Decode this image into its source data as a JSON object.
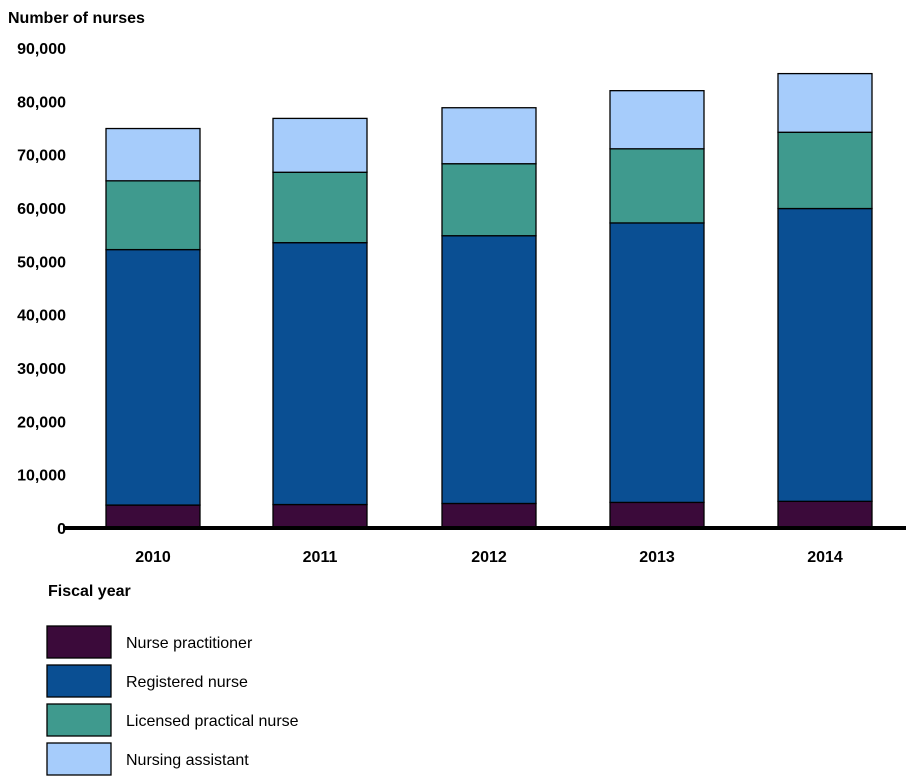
{
  "chart_data": {
    "type": "bar",
    "stacked": true,
    "title": "",
    "ylabel": "Number of nurses",
    "xlabel": "Fiscal year",
    "ylim": [
      0,
      90000
    ],
    "y_ticks": [
      0,
      10000,
      20000,
      30000,
      40000,
      50000,
      60000,
      70000,
      80000,
      90000
    ],
    "y_tick_labels": [
      "0",
      "10,000",
      "20,000",
      "30,000",
      "40,000",
      "50,000",
      "60,000",
      "70,000",
      "80,000",
      "90,000"
    ],
    "categories": [
      "2010",
      "2011",
      "2012",
      "2013",
      "2014"
    ],
    "series": [
      {
        "name": "Nurse practitioner",
        "color": "#3b0a3a",
        "values": [
          4300,
          4400,
          4600,
          4800,
          5000
        ]
      },
      {
        "name": "Registered nurse",
        "color": "#0a4f93",
        "values": [
          47900,
          49100,
          50200,
          52400,
          54900
        ]
      },
      {
        "name": "Licensed practical nurse",
        "color": "#3f9a8e",
        "values": [
          12900,
          13200,
          13500,
          13900,
          14300
        ]
      },
      {
        "name": "Nursing assistant",
        "color": "#a6ccfb",
        "values": [
          9800,
          10100,
          10500,
          10900,
          11000
        ]
      }
    ],
    "grid": false,
    "legend_position": "bottom-left"
  }
}
